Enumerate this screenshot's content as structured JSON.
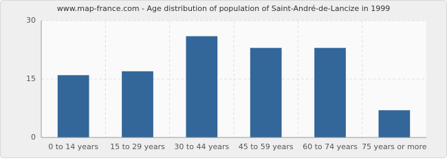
{
  "chart_data": {
    "type": "bar",
    "title": "www.map-france.com - Age distribution of population of Saint-André-de-Lancize in 1999",
    "categories": [
      "0 to 14 years",
      "15 to 29 years",
      "30 to 44 years",
      "45 to 59 years",
      "60 to 74 years",
      "75 years or more"
    ],
    "values": [
      16,
      17,
      26,
      23,
      23,
      7
    ],
    "color": "#336699",
    "ylim": [
      0,
      30
    ],
    "yticks": [
      0,
      15,
      30
    ],
    "grid": true
  }
}
